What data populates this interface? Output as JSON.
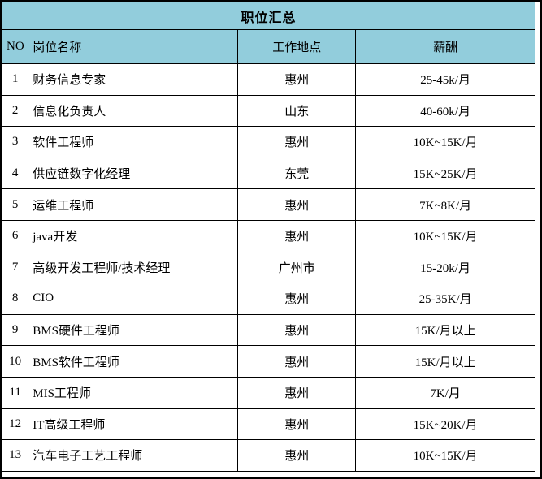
{
  "colors": {
    "header_bg": "#92cddc",
    "border": "#000000",
    "text": "#000000",
    "row_bg": "#ffffff"
  },
  "table": {
    "title": "职位汇总",
    "columns": [
      "NO",
      "岗位名称",
      "工作地点",
      "薪酬"
    ],
    "rows": [
      [
        "1",
        "财务信息专家",
        "惠州",
        "25-45k/月"
      ],
      [
        "2",
        "信息化负责人",
        "山东",
        "40-60k/月"
      ],
      [
        "3",
        "软件工程师",
        "惠州",
        "10K~15K/月"
      ],
      [
        "4",
        "供应链数字化经理",
        "东莞",
        "15K~25K/月"
      ],
      [
        "5",
        "运维工程师",
        "惠州",
        "7K~8K/月"
      ],
      [
        "6",
        "java开发",
        "惠州",
        "10K~15K/月"
      ],
      [
        "7",
        "高级开发工程师/技术经理",
        "广州市",
        "15-20k/月"
      ],
      [
        "8",
        "CIO",
        "惠州",
        "25-35K/月"
      ],
      [
        "9",
        "BMS硬件工程师",
        "惠州",
        "15K/月以上"
      ],
      [
        "10",
        "BMS软件工程师",
        "惠州",
        "15K/月以上"
      ],
      [
        "11",
        "MIS工程师",
        "惠州",
        "7K/月"
      ],
      [
        "12",
        "IT高级工程师",
        "惠州",
        "15K~20K/月"
      ],
      [
        "13",
        "汽车电子工艺工程师",
        "惠州",
        "10K~15K/月"
      ]
    ]
  }
}
